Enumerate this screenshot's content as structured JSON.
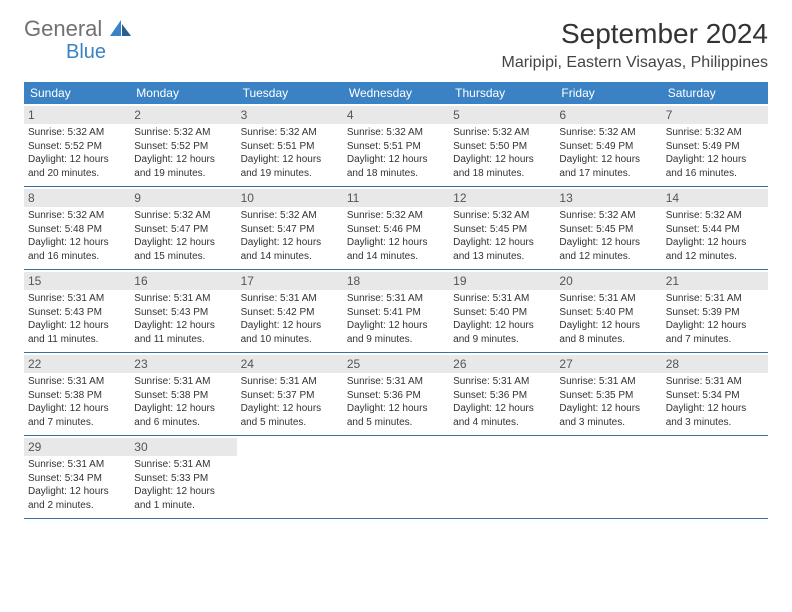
{
  "logo": {
    "text1": "General",
    "text2": "Blue",
    "icon_color": "#3b82c4"
  },
  "title": "September 2024",
  "location": "Maripipi, Eastern Visayas, Philippines",
  "header_bg": "#3b82c4",
  "weekdays": [
    "Sunday",
    "Monday",
    "Tuesday",
    "Wednesday",
    "Thursday",
    "Friday",
    "Saturday"
  ],
  "days": [
    {
      "n": "1",
      "sunrise": "Sunrise: 5:32 AM",
      "sunset": "Sunset: 5:52 PM",
      "daylight": "Daylight: 12 hours and 20 minutes."
    },
    {
      "n": "2",
      "sunrise": "Sunrise: 5:32 AM",
      "sunset": "Sunset: 5:52 PM",
      "daylight": "Daylight: 12 hours and 19 minutes."
    },
    {
      "n": "3",
      "sunrise": "Sunrise: 5:32 AM",
      "sunset": "Sunset: 5:51 PM",
      "daylight": "Daylight: 12 hours and 19 minutes."
    },
    {
      "n": "4",
      "sunrise": "Sunrise: 5:32 AM",
      "sunset": "Sunset: 5:51 PM",
      "daylight": "Daylight: 12 hours and 18 minutes."
    },
    {
      "n": "5",
      "sunrise": "Sunrise: 5:32 AM",
      "sunset": "Sunset: 5:50 PM",
      "daylight": "Daylight: 12 hours and 18 minutes."
    },
    {
      "n": "6",
      "sunrise": "Sunrise: 5:32 AM",
      "sunset": "Sunset: 5:49 PM",
      "daylight": "Daylight: 12 hours and 17 minutes."
    },
    {
      "n": "7",
      "sunrise": "Sunrise: 5:32 AM",
      "sunset": "Sunset: 5:49 PM",
      "daylight": "Daylight: 12 hours and 16 minutes."
    },
    {
      "n": "8",
      "sunrise": "Sunrise: 5:32 AM",
      "sunset": "Sunset: 5:48 PM",
      "daylight": "Daylight: 12 hours and 16 minutes."
    },
    {
      "n": "9",
      "sunrise": "Sunrise: 5:32 AM",
      "sunset": "Sunset: 5:47 PM",
      "daylight": "Daylight: 12 hours and 15 minutes."
    },
    {
      "n": "10",
      "sunrise": "Sunrise: 5:32 AM",
      "sunset": "Sunset: 5:47 PM",
      "daylight": "Daylight: 12 hours and 14 minutes."
    },
    {
      "n": "11",
      "sunrise": "Sunrise: 5:32 AM",
      "sunset": "Sunset: 5:46 PM",
      "daylight": "Daylight: 12 hours and 14 minutes."
    },
    {
      "n": "12",
      "sunrise": "Sunrise: 5:32 AM",
      "sunset": "Sunset: 5:45 PM",
      "daylight": "Daylight: 12 hours and 13 minutes."
    },
    {
      "n": "13",
      "sunrise": "Sunrise: 5:32 AM",
      "sunset": "Sunset: 5:45 PM",
      "daylight": "Daylight: 12 hours and 12 minutes."
    },
    {
      "n": "14",
      "sunrise": "Sunrise: 5:32 AM",
      "sunset": "Sunset: 5:44 PM",
      "daylight": "Daylight: 12 hours and 12 minutes."
    },
    {
      "n": "15",
      "sunrise": "Sunrise: 5:31 AM",
      "sunset": "Sunset: 5:43 PM",
      "daylight": "Daylight: 12 hours and 11 minutes."
    },
    {
      "n": "16",
      "sunrise": "Sunrise: 5:31 AM",
      "sunset": "Sunset: 5:43 PM",
      "daylight": "Daylight: 12 hours and 11 minutes."
    },
    {
      "n": "17",
      "sunrise": "Sunrise: 5:31 AM",
      "sunset": "Sunset: 5:42 PM",
      "daylight": "Daylight: 12 hours and 10 minutes."
    },
    {
      "n": "18",
      "sunrise": "Sunrise: 5:31 AM",
      "sunset": "Sunset: 5:41 PM",
      "daylight": "Daylight: 12 hours and 9 minutes."
    },
    {
      "n": "19",
      "sunrise": "Sunrise: 5:31 AM",
      "sunset": "Sunset: 5:40 PM",
      "daylight": "Daylight: 12 hours and 9 minutes."
    },
    {
      "n": "20",
      "sunrise": "Sunrise: 5:31 AM",
      "sunset": "Sunset: 5:40 PM",
      "daylight": "Daylight: 12 hours and 8 minutes."
    },
    {
      "n": "21",
      "sunrise": "Sunrise: 5:31 AM",
      "sunset": "Sunset: 5:39 PM",
      "daylight": "Daylight: 12 hours and 7 minutes."
    },
    {
      "n": "22",
      "sunrise": "Sunrise: 5:31 AM",
      "sunset": "Sunset: 5:38 PM",
      "daylight": "Daylight: 12 hours and 7 minutes."
    },
    {
      "n": "23",
      "sunrise": "Sunrise: 5:31 AM",
      "sunset": "Sunset: 5:38 PM",
      "daylight": "Daylight: 12 hours and 6 minutes."
    },
    {
      "n": "24",
      "sunrise": "Sunrise: 5:31 AM",
      "sunset": "Sunset: 5:37 PM",
      "daylight": "Daylight: 12 hours and 5 minutes."
    },
    {
      "n": "25",
      "sunrise": "Sunrise: 5:31 AM",
      "sunset": "Sunset: 5:36 PM",
      "daylight": "Daylight: 12 hours and 5 minutes."
    },
    {
      "n": "26",
      "sunrise": "Sunrise: 5:31 AM",
      "sunset": "Sunset: 5:36 PM",
      "daylight": "Daylight: 12 hours and 4 minutes."
    },
    {
      "n": "27",
      "sunrise": "Sunrise: 5:31 AM",
      "sunset": "Sunset: 5:35 PM",
      "daylight": "Daylight: 12 hours and 3 minutes."
    },
    {
      "n": "28",
      "sunrise": "Sunrise: 5:31 AM",
      "sunset": "Sunset: 5:34 PM",
      "daylight": "Daylight: 12 hours and 3 minutes."
    },
    {
      "n": "29",
      "sunrise": "Sunrise: 5:31 AM",
      "sunset": "Sunset: 5:34 PM",
      "daylight": "Daylight: 12 hours and 2 minutes."
    },
    {
      "n": "30",
      "sunrise": "Sunrise: 5:31 AM",
      "sunset": "Sunset: 5:33 PM",
      "daylight": "Daylight: 12 hours and 1 minute."
    }
  ]
}
